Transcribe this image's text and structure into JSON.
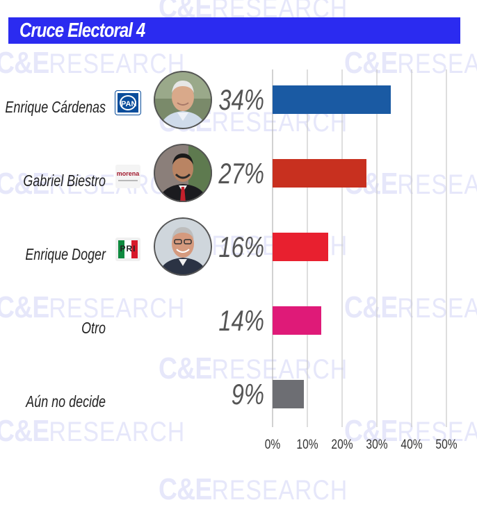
{
  "title": "Cruce Electoral 4",
  "watermark": {
    "left": "C&E",
    "right": "RESEARCH"
  },
  "candidates": [
    {
      "name": "Enrique Cárdenas",
      "party_logo": "pan-logo",
      "logo_text": "PAN",
      "photo": "candidate-photo-enrique-cardenas"
    },
    {
      "name": "Gabriel Biestro",
      "party_logo": "morena-logo",
      "logo_text": "morena",
      "photo": "candidate-photo-gabriel-biestro"
    },
    {
      "name": "Enrique Doger",
      "party_logo": "pri-logo",
      "logo_text": "PRI",
      "photo": "candidate-photo-enrique-doger"
    },
    {
      "name": "Otro"
    },
    {
      "name": "Aún no decide"
    }
  ],
  "chart_data": {
    "type": "bar",
    "orientation": "horizontal",
    "categories": [
      "Enrique Cárdenas",
      "Gabriel Biestro",
      "Enrique Doger",
      "Otro",
      "Aún no decide"
    ],
    "values": [
      34,
      27,
      16,
      14,
      9
    ],
    "value_labels": [
      "34%",
      "27%",
      "16%",
      "14%",
      "9%"
    ],
    "colors": [
      "#1a5aa3",
      "#c8301f",
      "#e8202f",
      "#df1a78",
      "#6d6e73"
    ],
    "xlim": [
      0,
      50
    ],
    "ticks": [
      0,
      10,
      20,
      30,
      40,
      50
    ],
    "tick_labels": [
      "0%",
      "10%",
      "20%",
      "30%",
      "40%",
      "50%"
    ],
    "grid": true,
    "title": "Cruce Electoral 4"
  }
}
